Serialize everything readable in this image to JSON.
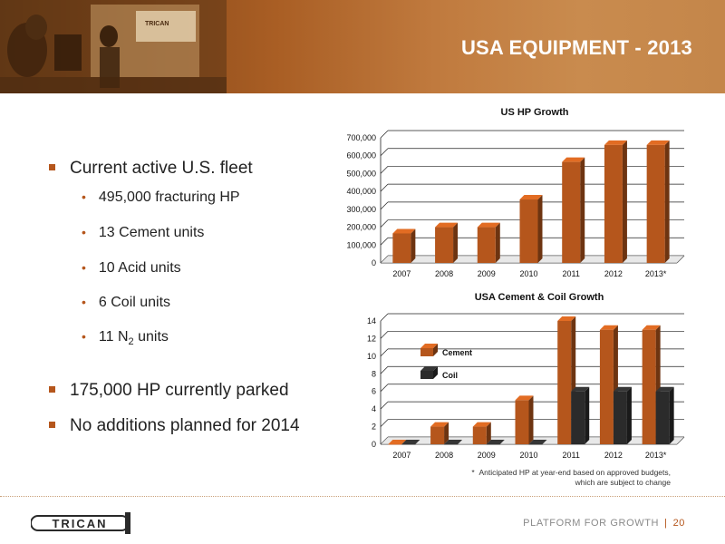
{
  "slide": {
    "title": "USA EQUIPMENT - 2013",
    "brand": "TRICAN",
    "tagline": "PLATFORM FOR GROWTH",
    "page_number": "20"
  },
  "fleet": {
    "heading": "Current active U.S. fleet",
    "items": [
      "495,000 fracturing HP",
      "13 Cement units",
      "10 Acid units",
      "6 Coil units"
    ],
    "n2_prefix": "11 N",
    "n2_sub": "2",
    "n2_suffix": " units"
  },
  "notes": [
    "175,000 HP currently parked",
    "No additions planned for 2014"
  ],
  "footnote": {
    "marker": "*",
    "text": "Anticipated HP at year-end based on approved budgets, which are subject to change"
  },
  "colors": {
    "accent": "#b5561c",
    "cement": "#b5561c",
    "coil": "#2b2b2b"
  },
  "chart_data": [
    {
      "type": "bar",
      "title": "US HP Growth",
      "categories": [
        "2007",
        "2008",
        "2009",
        "2010",
        "2011",
        "2012",
        "2013*"
      ],
      "values": [
        165000,
        200000,
        200000,
        355000,
        565000,
        660000,
        660000
      ],
      "ylim": [
        0,
        700000
      ],
      "yticks": [
        "0",
        "100,000",
        "200,000",
        "300,000",
        "400,000",
        "500,000",
        "600,000",
        "700,000"
      ],
      "grid": true
    },
    {
      "type": "bar",
      "title": "USA Cement & Coil Growth",
      "categories": [
        "2007",
        "2008",
        "2009",
        "2010",
        "2011",
        "2012",
        "2013*"
      ],
      "series": [
        {
          "name": "Cement",
          "values": [
            0,
            2,
            2,
            5,
            14,
            13,
            13
          ]
        },
        {
          "name": "Coil",
          "values": [
            0,
            0,
            0,
            0,
            6,
            6,
            6
          ]
        }
      ],
      "ylim": [
        0,
        14
      ],
      "yticks": [
        "0",
        "2",
        "4",
        "6",
        "8",
        "10",
        "12",
        "14"
      ],
      "grid": true,
      "legend": "left"
    }
  ]
}
